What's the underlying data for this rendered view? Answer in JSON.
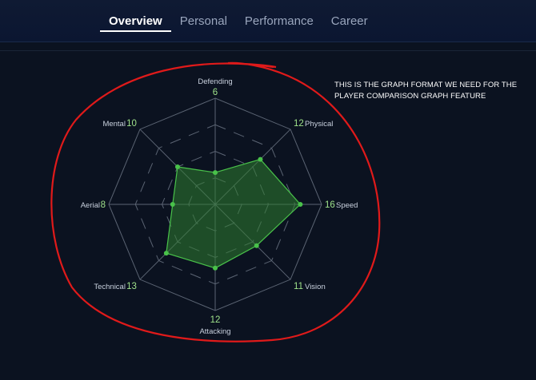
{
  "tabs": [
    {
      "label": "Overview",
      "active": true
    },
    {
      "label": "Personal",
      "active": false
    },
    {
      "label": "Performance",
      "active": false
    },
    {
      "label": "Career",
      "active": false
    }
  ],
  "annotation": {
    "note": "THIS IS THE GRAPH FORMAT WE NEED FOR THE PLAYER COMPARISON GRAPH FEATURE",
    "circle_color": "#e01a1a"
  },
  "chart_data": {
    "type": "radar",
    "max": 20,
    "axes": [
      {
        "name": "Defending",
        "value": 6
      },
      {
        "name": "Physical",
        "value": 12
      },
      {
        "name": "Speed",
        "value": 16
      },
      {
        "name": "Vision",
        "value": 11
      },
      {
        "name": "Attacking",
        "value": 12
      },
      {
        "name": "Technical",
        "value": 13
      },
      {
        "name": "Aerial",
        "value": 8
      },
      {
        "name": "Mental",
        "value": 10
      }
    ],
    "colors": {
      "fill": "#2f7d2f",
      "stroke": "#49c24a",
      "grid": "#5b6473",
      "value_text": "#9fe28a"
    }
  }
}
